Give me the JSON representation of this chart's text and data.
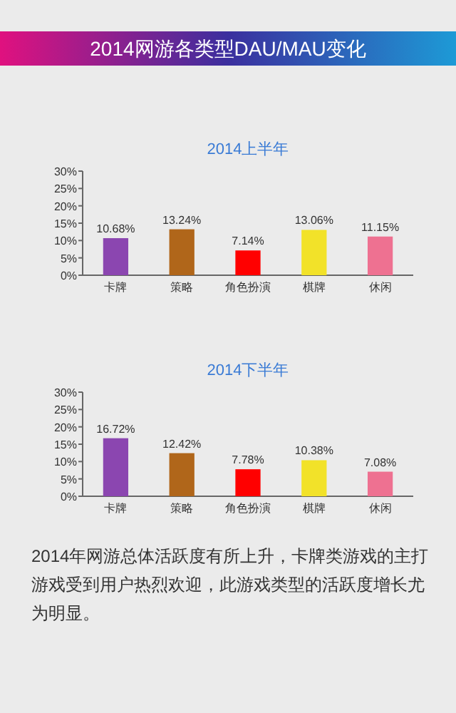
{
  "chart_data": [
    {
      "type": "bar",
      "title": "2014网游各类型DAU/MAU变化",
      "subtitle": "2014上半年",
      "categories": [
        "卡牌",
        "策略",
        "角色扮演",
        "棋牌",
        "休闲"
      ],
      "values": [
        10.68,
        13.24,
        7.14,
        13.06,
        11.15
      ],
      "colors": [
        "#8b46b0",
        "#b0661a",
        "#ff0000",
        "#f2e229",
        "#ee7191"
      ],
      "value_labels": [
        "10.68%",
        "13.24%",
        "7.14%",
        "13.06%",
        "11.15%"
      ],
      "ylim": [
        0,
        30
      ],
      "yticks": [
        {
          "value": 0,
          "label": "0%"
        },
        {
          "value": 5,
          "label": "5%"
        },
        {
          "value": 10,
          "label": "10%"
        },
        {
          "value": 15,
          "label": "15%"
        },
        {
          "value": 20,
          "label": "20%"
        },
        {
          "value": 25,
          "label": "25%"
        },
        {
          "value": 30,
          "label": "30%"
        }
      ],
      "grid": false
    },
    {
      "type": "bar",
      "title": "2014下半年",
      "categories": [
        "卡牌",
        "策略",
        "角色扮演",
        "棋牌",
        "休闲"
      ],
      "values": [
        16.72,
        12.42,
        7.78,
        10.38,
        7.08
      ],
      "colors": [
        "#8b46b0",
        "#b0661a",
        "#ff0000",
        "#f2e229",
        "#ee7191"
      ],
      "value_labels": [
        "16.72%",
        "12.42%",
        "7.78%",
        "10.38%",
        "7.08%"
      ],
      "ylim": [
        0,
        30
      ],
      "yticks": [
        {
          "value": 0,
          "label": "0%"
        },
        {
          "value": 5,
          "label": "5%"
        },
        {
          "value": 10,
          "label": "10%"
        },
        {
          "value": 15,
          "label": "15%"
        },
        {
          "value": 20,
          "label": "20%"
        },
        {
          "value": 25,
          "label": "25%"
        },
        {
          "value": 30,
          "label": "30%"
        }
      ],
      "grid": false,
      "annotations": [
        "2014年网游总体活跃度有所上升，卡牌类游戏的主打游戏受到用户热烈欢迎，此游戏类型的活跃度增长尤为明显。"
      ]
    }
  ]
}
